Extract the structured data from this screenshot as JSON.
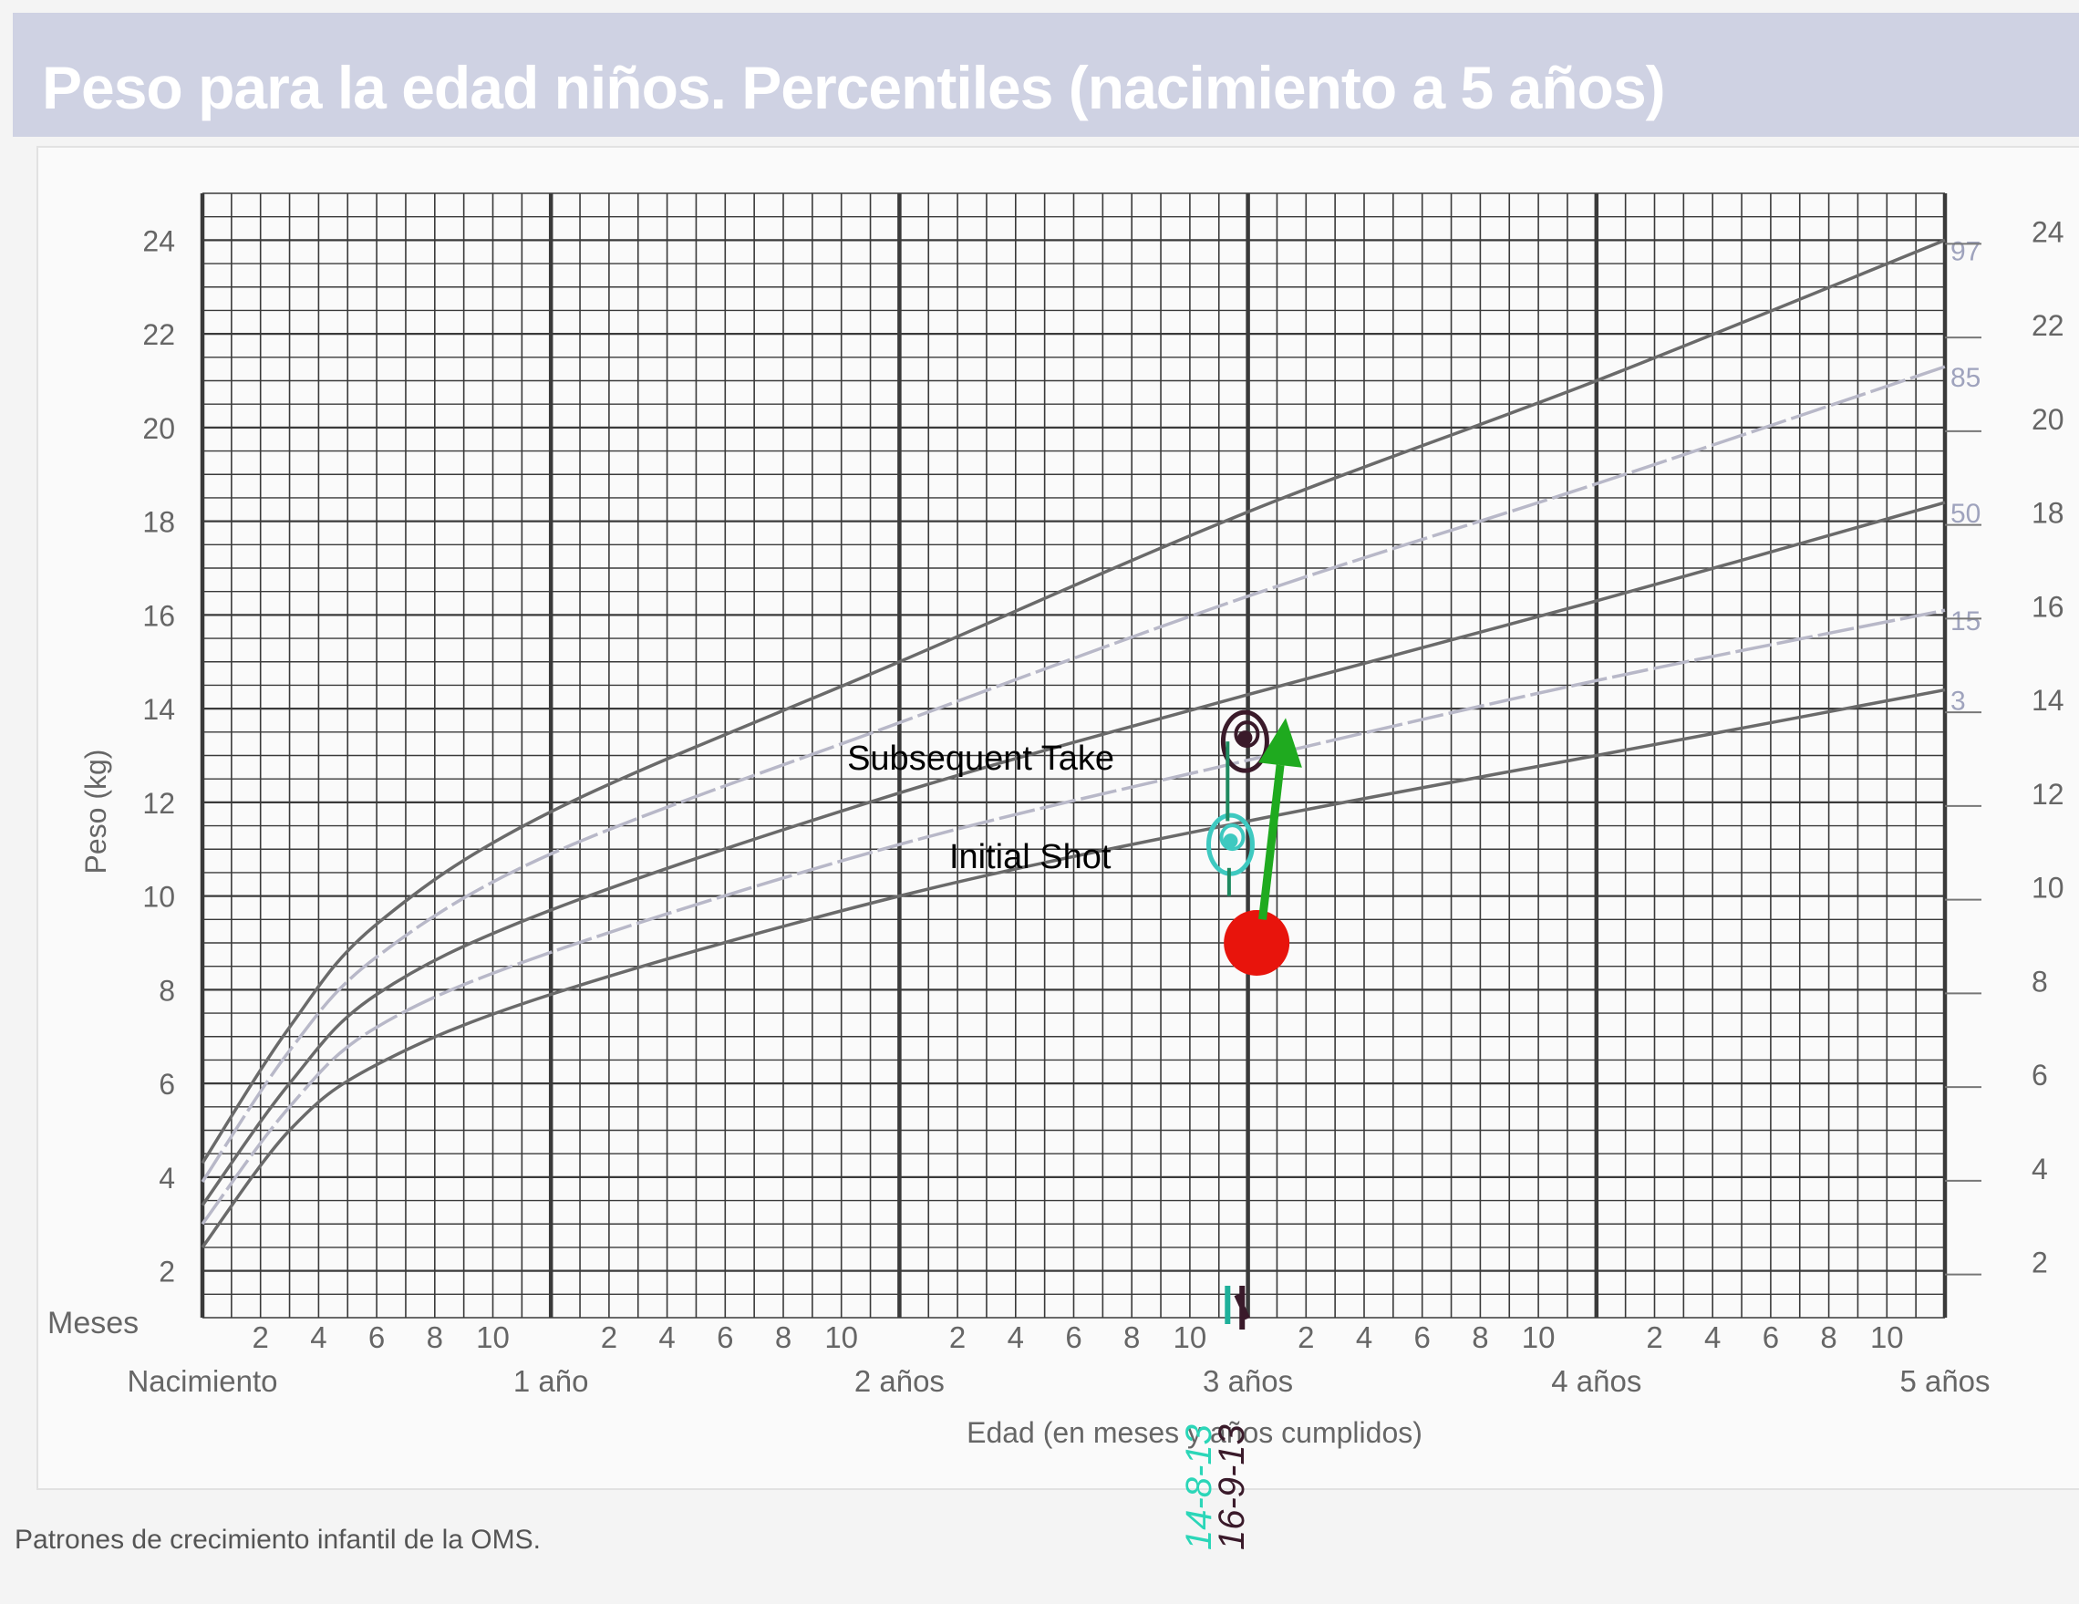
{
  "header": {
    "title": "Peso para la edad niños. Percentiles (nacimiento a 5 años)"
  },
  "footer": {
    "source": "Patrones de crecimiento infantil de la OMS."
  },
  "chart_data": {
    "type": "line",
    "title": "Peso para la edad niños. Percentiles (nacimiento a 5 años)",
    "xlabel": "Edad (en meses y años cumplidos)",
    "ylabel": "Peso (kg)",
    "xlim": [
      0,
      60
    ],
    "ylim": [
      1,
      25
    ],
    "grid": true,
    "x_meses_label": "Meses",
    "x_month_ticks": [
      "2",
      "4",
      "6",
      "8",
      "10"
    ],
    "x_year_labels": [
      "Nacimiento",
      "1 año",
      "2 años",
      "3 años",
      "4 años",
      "5 años"
    ],
    "y_ticks": [
      2,
      4,
      6,
      8,
      10,
      12,
      14,
      16,
      18,
      20,
      22,
      24
    ],
    "x": [
      0,
      3,
      6,
      12,
      24,
      36,
      48,
      60
    ],
    "series": [
      {
        "name": "97",
        "values": [
          4.3,
          7.2,
          9.4,
          11.8,
          15.0,
          18.2,
          21.0,
          24.0
        ]
      },
      {
        "name": "85",
        "values": [
          3.9,
          6.7,
          8.7,
          10.9,
          13.7,
          16.4,
          18.8,
          21.3
        ]
      },
      {
        "name": "50",
        "values": [
          3.4,
          6.0,
          7.9,
          9.7,
          12.2,
          14.3,
          16.3,
          18.4
        ]
      },
      {
        "name": "15",
        "values": [
          3.0,
          5.5,
          7.2,
          8.8,
          11.1,
          12.9,
          14.6,
          16.1
        ]
      },
      {
        "name": "3",
        "values": [
          2.5,
          5.0,
          6.4,
          7.9,
          10.0,
          11.6,
          13.0,
          14.4
        ]
      }
    ],
    "annotations": [
      {
        "text": "Subsequent Take",
        "x": 26.8,
        "y": 12.7
      },
      {
        "text": "Initial Shot",
        "x": 28.5,
        "y": 10.6
      }
    ],
    "marks": [
      {
        "kind": "circled-point",
        "color": "#3a1a2a",
        "x": 35.9,
        "y": 13.3
      },
      {
        "kind": "circled-point",
        "color": "#3ec9c0",
        "x": 35.4,
        "y": 11.1
      },
      {
        "kind": "red-dot",
        "color": "#e8140c",
        "x": 36.3,
        "y": 9.0
      },
      {
        "kind": "arrow",
        "color": "#1faa1f",
        "from": [
          36.5,
          9.5
        ],
        "to": [
          37.3,
          13.8
        ]
      }
    ],
    "handwritten_dates": [
      "14-8-13",
      "16-9-13"
    ],
    "colors": {
      "curve": "#6a6a6a",
      "curve_light": "#b8b8c8",
      "grid": "#3a3a3a"
    }
  }
}
